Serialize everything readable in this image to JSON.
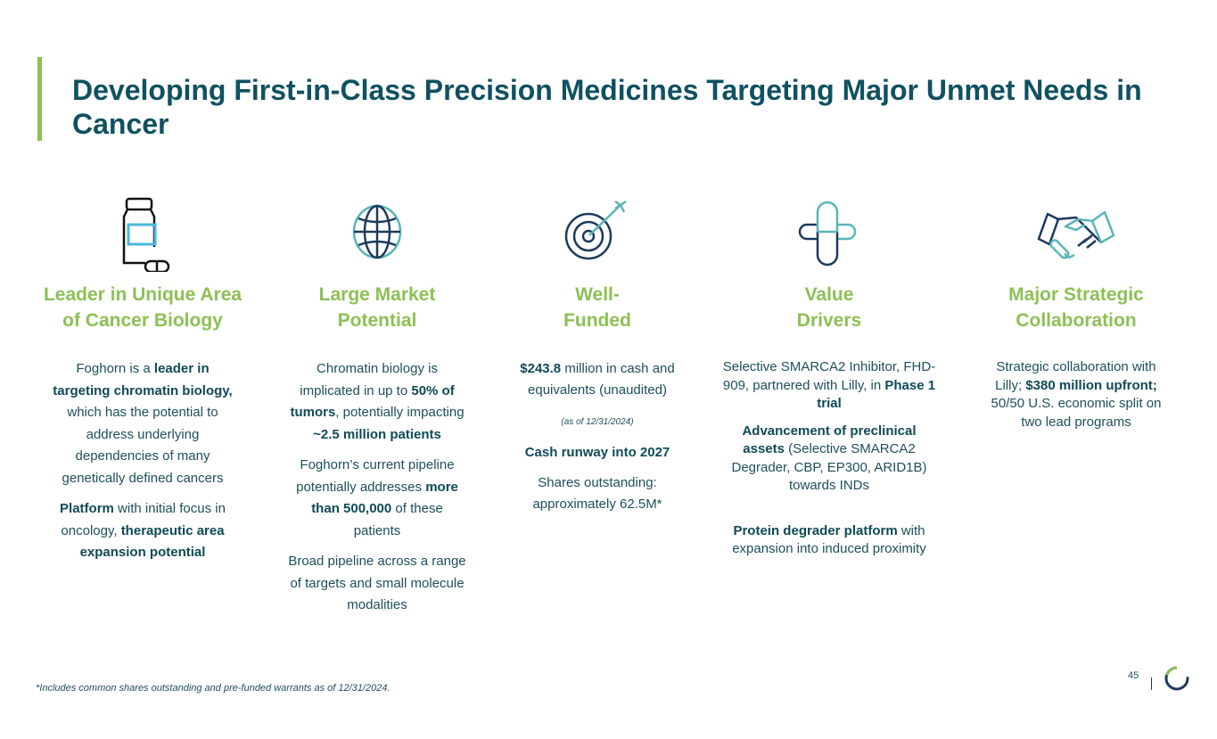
{
  "title": "Developing First-in-Class Precision Medicines Targeting Major Unmet Needs in Cancer",
  "colors": {
    "title": "#0f5161",
    "heading": "#8dc055",
    "body": "#1d4f5c",
    "icon_dark": "#1d3a5c",
    "icon_light": "#5ab5b8"
  },
  "columns": [
    {
      "icon": "medicine-bottle-icon",
      "heading": "Leader in Unique Area of Cancer Biology",
      "paragraphs": [
        [
          {
            "t": "Foghorn is a "
          },
          {
            "t": "leader in targeting chromatin biology,",
            "b": true
          },
          {
            "t": " which has the potential to address underlying dependencies of many genetically defined cancers"
          }
        ],
        [
          {
            "t": "Platform",
            "b": true
          },
          {
            "t": " with initial focus in oncology, "
          },
          {
            "t": "therapeutic area expansion potential",
            "b": true
          }
        ]
      ]
    },
    {
      "icon": "globe-icon",
      "heading": "Large Market Potential",
      "paragraphs": [
        [
          {
            "t": "Chromatin biology is implicated in up to "
          },
          {
            "t": "50% of tumors",
            "b": true
          },
          {
            "t": ", potentially impacting "
          },
          {
            "t": "~2.5 million patients",
            "b": true
          }
        ],
        [
          {
            "t": "Foghorn’s current pipeline potentially addresses "
          },
          {
            "t": "more than 500,000",
            "b": true
          },
          {
            "t": " of these patients"
          }
        ],
        [
          {
            "t": "Broad pipeline across a range of targets and small molecule modalities"
          }
        ]
      ]
    },
    {
      "icon": "target-icon",
      "heading": "Well-Funded",
      "paragraphs": [
        [
          {
            "t": "$243.8",
            "b": true
          },
          {
            "t": " million in cash and equivalents (unaudited)"
          }
        ],
        [
          {
            "t": "(as of 12/31/2024)",
            "small": true
          }
        ],
        [
          {
            "t": "Cash runway into 2027",
            "b": true
          }
        ],
        [
          {
            "t": "Shares outstanding: approximately 62.5M*"
          }
        ]
      ]
    },
    {
      "icon": "pill-cross-icon",
      "heading": "Value Drivers",
      "paragraphs": [
        [
          {
            "t": "Selective SMARCA2 Inhibitor, FHD-909, partnered with Lilly, in "
          },
          {
            "t": "Phase 1 trial",
            "b": true
          }
        ],
        [
          {
            "t": "Advancement of preclinical assets",
            "b": true
          },
          {
            "t": " (Selective SMARCA2 Degrader, CBP, EP300, ARID1B) towards INDs"
          }
        ],
        [
          {
            "t": "Protein degrader platform",
            "b": true
          },
          {
            "t": " with expansion into induced proximity"
          }
        ]
      ]
    },
    {
      "icon": "handshake-icon",
      "heading": "Major Strategic Collaboration",
      "paragraphs": [
        [
          {
            "t": "Strategic collaboration with Lilly; "
          },
          {
            "t": "$380 million upfront;",
            "b": true
          },
          {
            "t": " 50/50 U.S. economic split on two lead programs"
          }
        ]
      ]
    }
  ],
  "footnote": "*Includes common shares outstanding and pre-funded warrants as of 12/31/2024.",
  "page_number": "45"
}
